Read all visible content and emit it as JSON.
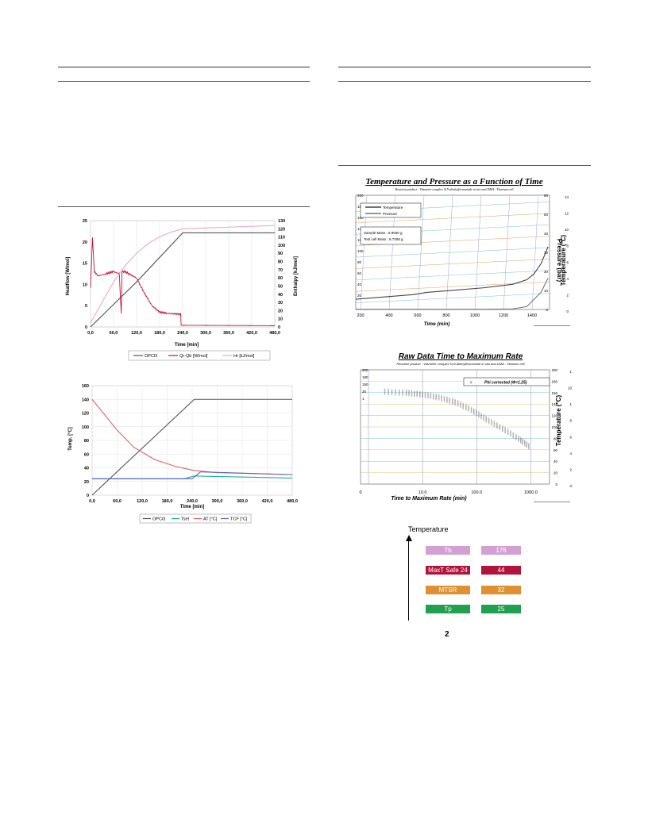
{
  "page_number": "2",
  "calorimetry_chart": {
    "type": "line",
    "x_ticks": [
      "0,0",
      "60,0",
      "120,0",
      "180,0",
      "240,0",
      "300,0",
      "360,0",
      "420,0",
      "480,0"
    ],
    "x_range": [
      0,
      480
    ],
    "xlabel": "Time [min]",
    "left_axis": {
      "label": "Heatflow [W/mol]",
      "range": [
        0,
        25
      ],
      "ticks": [
        "0",
        "5",
        "10",
        "15",
        "20",
        "25"
      ]
    },
    "right_axis": {
      "label": "Enthalpy [kJ/mol]",
      "range": [
        0,
        130
      ],
      "ticks": [
        "0",
        "10",
        "20",
        "30",
        "40",
        "50",
        "60",
        "70",
        "80",
        "90",
        "100",
        "110",
        "120",
        "130"
      ]
    },
    "legend": [
      "OPCl3",
      "Qr-Qb [W/mol]",
      "Hr [kJ/mol]"
    ],
    "colors": {
      "OPCl3": "#555555",
      "Qr-Qb": "#c0143c",
      "Hr": "#f0a8c8"
    },
    "series": [
      {
        "name": "OPCl3",
        "axis": "right",
        "x": [
          0,
          120,
          240,
          480
        ],
        "y": [
          0,
          55,
          115,
          115
        ]
      },
      {
        "name": "Qr-Qb [W/mol]",
        "axis": "left",
        "x": [
          0,
          5,
          10,
          20,
          40,
          60,
          75,
          80,
          82,
          90,
          100,
          120,
          140,
          160,
          180,
          200,
          235,
          236,
          480
        ],
        "y": [
          9,
          21,
          13,
          12,
          12.5,
          13,
          12.5,
          3,
          13,
          13,
          12.5,
          11.5,
          8,
          5,
          3.5,
          3.2,
          3,
          0.4,
          0.3
        ]
      },
      {
        "name": "Hr [kJ/mol]",
        "axis": "right",
        "x": [
          0,
          30,
          60,
          90,
          120,
          150,
          180,
          210,
          240,
          300,
          360,
          420,
          480
        ],
        "y": [
          5,
          30,
          55,
          75,
          90,
          102,
          110,
          116,
          120,
          121,
          122,
          123,
          124
        ]
      }
    ]
  },
  "temperature_chart": {
    "type": "line",
    "x_ticks": [
      "0,0",
      "60,0",
      "120,0",
      "180,0",
      "240,0",
      "300,0",
      "360,0",
      "420,0",
      "480,0"
    ],
    "x_range": [
      0,
      480
    ],
    "xlabel": "Time [min]",
    "y_axis": {
      "label": "Temp. [°C]",
      "range": [
        0,
        160
      ],
      "ticks": [
        "0",
        "20",
        "40",
        "60",
        "80",
        "100",
        "120",
        "140",
        "160"
      ]
    },
    "legend": [
      "OPCl3",
      "Tset",
      "AT [°C]",
      "TCF [°C]"
    ],
    "colors": {
      "OPCl3": "#555555",
      "Tset": "#1ab0a0",
      "AT": "#e06060",
      "TCF": "#6060c0"
    },
    "series": [
      {
        "name": "OPCl3",
        "x": [
          0,
          245,
          480
        ],
        "y": [
          0,
          140,
          140
        ]
      },
      {
        "name": "Tset",
        "x": [
          0,
          220,
          245,
          480
        ],
        "y": [
          24,
          24,
          28,
          25
        ]
      },
      {
        "name": "AT [°C]",
        "x": [
          0,
          20,
          60,
          100,
          150,
          200,
          245,
          300,
          480
        ],
        "y": [
          140,
          125,
          95,
          70,
          52,
          42,
          36,
          33,
          30
        ]
      },
      {
        "name": "TCF [°C]",
        "x": [
          0,
          240,
          260,
          480
        ],
        "y": [
          24,
          24,
          34,
          30
        ]
      }
    ]
  },
  "pressure_chart": {
    "type": "line",
    "title": "Temperature and Pressure as a Function of Time",
    "subtitle": "Reaction product - Vilsmeier complex N,N-diethylformamide in situ and DMA - Titanium cell",
    "xlabel": "Time (min)",
    "x_ticks": [
      "200",
      "400",
      "600",
      "800",
      "1000",
      "1200",
      "1400"
    ],
    "left_ticks": [
      "200",
      "180",
      "160",
      "140",
      "120",
      "100",
      "80",
      "60",
      "40",
      "20"
    ],
    "right_ticks": [
      "60",
      "50",
      "40",
      "30",
      "20",
      "10",
      "0"
    ],
    "right_label": "Temperature (°C)",
    "right_label2": "Pressure (bar)",
    "far_right_ticks": [
      "14",
      "12",
      "10",
      "8",
      "6",
      "4",
      "2",
      "0"
    ],
    "legend": [
      "Temperature",
      "Pressure"
    ],
    "sample_mass": "Sample Mass : 6.9930 g",
    "test_cell_mass": "Test cell Mass : 6.7308 g",
    "series": [
      {
        "name": "Temperature",
        "x": [
          100,
          300,
          500,
          600,
          800,
          1000,
          1200,
          1300,
          1350,
          1400,
          1450
        ],
        "y": [
          18,
          22,
          26,
          30,
          34,
          38,
          44,
          52,
          62,
          80,
          110
        ]
      },
      {
        "name": "Pressure",
        "x": [
          100,
          600,
          1000,
          1200,
          1300,
          1400,
          1450
        ],
        "y": [
          0.5,
          0.5,
          0.5,
          1,
          5,
          30,
          55
        ]
      }
    ]
  },
  "tmr_chart": {
    "type": "scatter",
    "title": "Raw Data Time to Maximum Rate",
    "subtitle": "Reaction product - Vilsmeier complex N,N-diethylformamide in situ and DMA - Titanium cell",
    "xlabel": "Time to Maximum Rate (min)",
    "x_ticks": [
      "0",
      "10.0",
      "100.0",
      "1000.0"
    ],
    "left_ticks": [
      "200",
      "180",
      "160",
      "140",
      "120",
      "100",
      "80",
      "60",
      "40",
      "20",
      "0"
    ],
    "left_ticks_visible": [
      "200",
      "180",
      "150",
      "30",
      "1"
    ],
    "right_ticks": [
      "200",
      "180",
      "160",
      "140",
      "120",
      "100",
      "80",
      "60",
      "40",
      "20",
      "0"
    ],
    "right_label": "Temperature (°C)",
    "far_right_ticks": [
      "1",
      "10",
      "1",
      "8",
      "6",
      "4",
      "2",
      "0"
    ],
    "legend": [
      "Phi corrected (Φ=1.25)"
    ],
    "series": [
      {
        "name": "Phi corrected (Φ=1.25)",
        "x": [
          2,
          5,
          10,
          20,
          40,
          80,
          150,
          300,
          600,
          1000
        ],
        "y": [
          160,
          158,
          155,
          150,
          142,
          128,
          112,
          95,
          78,
          62
        ]
      }
    ]
  },
  "temperature_scale": {
    "label": "Temperature",
    "rows": [
      {
        "name": "Tb",
        "value": "176",
        "color": "#d4a0d4"
      },
      {
        "name": "MaxT Safe 24",
        "value": "44",
        "color": "#b0143c"
      },
      {
        "name": "MTSR",
        "value": "32",
        "color": "#e09030"
      },
      {
        "name": "Tp",
        "value": "25",
        "color": "#20a050"
      }
    ]
  }
}
